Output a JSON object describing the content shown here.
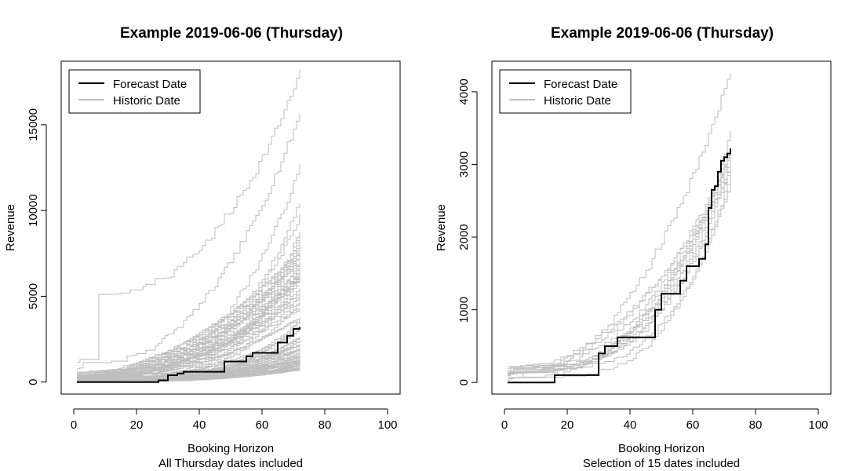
{
  "colors": {
    "forecast": "#000000",
    "historic": "#bebebe",
    "axis": "#000000",
    "background": "#ffffff"
  },
  "chart_data": [
    {
      "type": "line",
      "title": "Example 2019-06-06 (Thursday)",
      "xlabel": "Booking Horizon",
      "xlabel2": "All Thursday dates included",
      "ylabel": "Revenue",
      "xlim": [
        -4,
        104
      ],
      "ylim": [
        -700,
        18700
      ],
      "xticks": [
        0,
        20,
        40,
        60,
        80,
        100
      ],
      "xtick_labels": [
        "0",
        "20",
        "40",
        "60",
        "80",
        "100"
      ],
      "yticks": [
        0,
        5000,
        10000,
        15000
      ],
      "ytick_labels": [
        "0",
        "5000",
        "10000",
        "15000"
      ],
      "legend": {
        "position": "top-left",
        "entries": [
          "Forecast Date",
          "Historic Date"
        ]
      },
      "forecast": {
        "name": "Forecast Date",
        "x": [
          1,
          16,
          27,
          30,
          33,
          35,
          46,
          48,
          49,
          55,
          57,
          63,
          65,
          68,
          70,
          72
        ],
        "y": [
          0,
          0,
          100,
          400,
          500,
          600,
          600,
          1200,
          1200,
          1500,
          1700,
          1700,
          2300,
          2700,
          3100,
          3200
        ]
      },
      "historic": {
        "name": "Historic Date",
        "count": 100,
        "seed": 7,
        "x_start": 1,
        "x_end": 72,
        "final_min": 700,
        "final_max": 18000,
        "highlighted_final": [
          17900,
          15600,
          12500,
          10500,
          9600,
          8800,
          8200,
          7600,
          7100
        ],
        "early_jump_series": {
          "x": 8,
          "y": 4700
        }
      }
    },
    {
      "type": "line",
      "title": "Example 2019-06-06 (Thursday)",
      "xlabel": "Booking Horizon",
      "xlabel2": "Selection of 15 dates included",
      "ylabel": "Revenue",
      "xlim": [
        -4,
        104
      ],
      "ylim": [
        -160,
        4420
      ],
      "xticks": [
        0,
        20,
        40,
        60,
        80,
        100
      ],
      "xtick_labels": [
        "0",
        "20",
        "40",
        "60",
        "80",
        "100"
      ],
      "yticks": [
        0,
        1000,
        2000,
        3000,
        4000
      ],
      "ytick_labels": [
        "0",
        "1000",
        "2000",
        "3000",
        "4000"
      ],
      "legend": {
        "position": "top-left",
        "entries": [
          "Forecast Date",
          "Historic Date"
        ]
      },
      "forecast": {
        "name": "Forecast Date",
        "x": [
          1,
          16,
          27,
          30,
          32,
          34,
          36,
          47,
          48,
          50,
          54,
          56,
          58,
          62,
          64,
          65,
          66,
          67,
          68,
          69,
          70,
          71,
          72
        ],
        "y": [
          0,
          100,
          100,
          400,
          500,
          500,
          620,
          620,
          1000,
          1220,
          1220,
          1400,
          1600,
          1700,
          1900,
          2400,
          2650,
          2700,
          2900,
          3050,
          3100,
          3150,
          3220
        ]
      },
      "historic": {
        "name": "Historic Date",
        "count": 15,
        "seed": 21,
        "x_start": 1,
        "x_end": 72,
        "final_min": 2600,
        "final_max": 4300,
        "highlighted_final": [
          4250
        ]
      }
    }
  ]
}
